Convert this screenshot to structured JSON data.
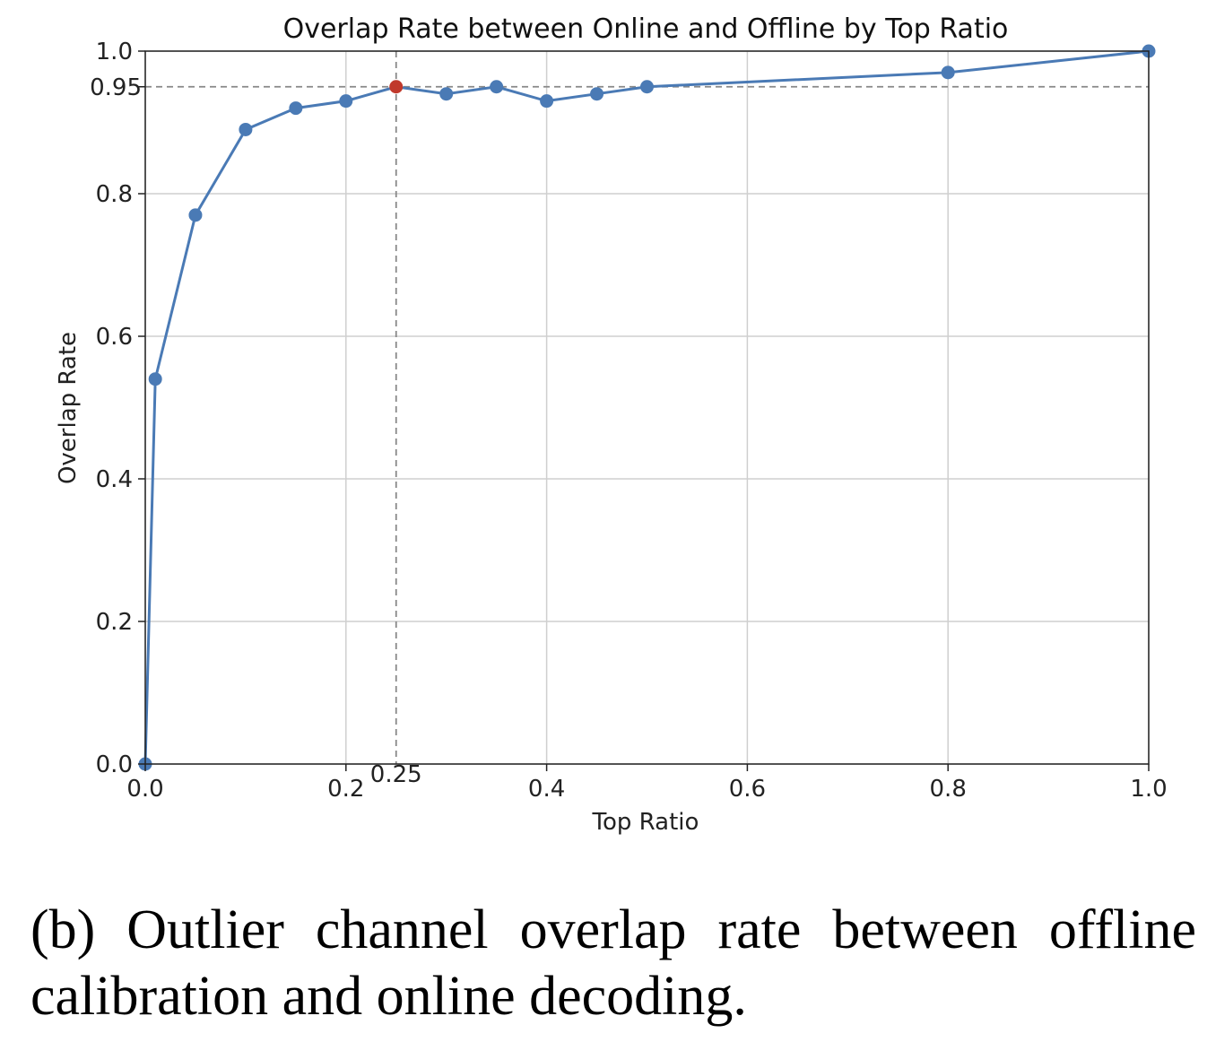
{
  "chart_data": {
    "type": "line",
    "title": "Overlap Rate between Online and Offline by Top Ratio",
    "xlabel": "Top Ratio",
    "ylabel": "Overlap Rate",
    "xlim": [
      0,
      1.0
    ],
    "ylim": [
      0,
      1.0
    ],
    "grid": true,
    "x_ticks": [
      "0.0",
      "0.2",
      "0.4",
      "0.6",
      "0.8",
      "1.0"
    ],
    "x_tick_values": [
      0,
      0.2,
      0.4,
      0.6,
      0.8,
      1.0
    ],
    "y_ticks": [
      "0.0",
      "0.2",
      "0.4",
      "0.6",
      "0.8",
      "1.0"
    ],
    "y_tick_values": [
      0,
      0.2,
      0.4,
      0.6,
      0.8,
      1.0
    ],
    "reference_lines": {
      "y": 0.95,
      "y_label": "0.95",
      "x": 0.25,
      "x_label": "0.25"
    },
    "series": [
      {
        "color": "#4a7ab5",
        "x": [
          0,
          0.01,
          0.05,
          0.1,
          0.15,
          0.2,
          0.25,
          0.3,
          0.35,
          0.4,
          0.45,
          0.5,
          0.8,
          1.0
        ],
        "y": [
          0.0,
          0.54,
          0.77,
          0.89,
          0.92,
          0.93,
          0.95,
          0.94,
          0.95,
          0.93,
          0.94,
          0.95,
          0.97,
          1.0
        ]
      }
    ],
    "highlight_point": {
      "x": 0.25,
      "y": 0.95,
      "color": "#c0392b"
    }
  },
  "caption": "(b) Outlier channel overlap rate between offline calibration and online decoding."
}
